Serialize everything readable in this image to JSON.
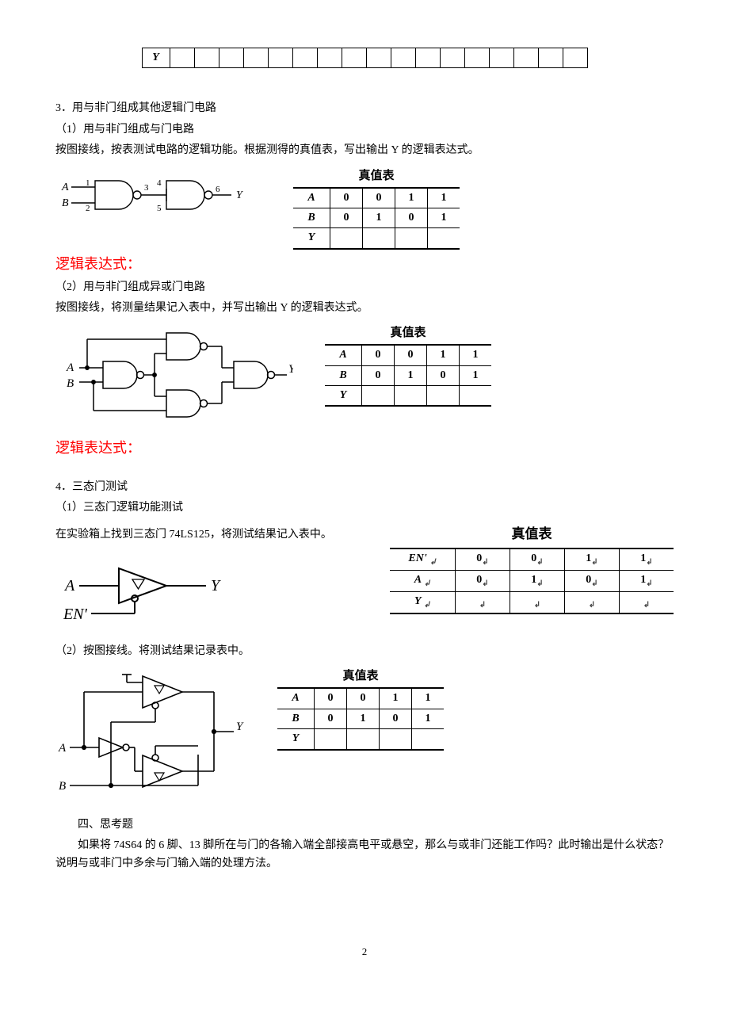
{
  "strip": {
    "label": "Y",
    "cols": 17
  },
  "s3": {
    "heading": "3．用与非门组成其他逻辑门电路",
    "p1": "（1）用与非门组成与门电路",
    "p1desc": "按图接线，按表测试电路的逻辑功能。根据测得的真值表，写出输出 Y 的逻辑表达式。",
    "nand_and": {
      "A": "A",
      "B": "B",
      "Y": "Y",
      "n1": "1",
      "n2": "2",
      "n3": "3",
      "n4": "4",
      "n5": "5",
      "n6": "6"
    },
    "truth1": {
      "title": "真值表",
      "rows": [
        [
          "A",
          "0",
          "0",
          "1",
          "1"
        ],
        [
          "B",
          "0",
          "1",
          "0",
          "1"
        ],
        [
          "Y",
          "",
          "",
          "",
          ""
        ]
      ]
    },
    "expr": "逻辑表达式：",
    "p2": "（2）用与非门组成异或门电路",
    "p2desc": "按图接线，将测量结果记入表中，并写出输出 Y 的逻辑表达式。",
    "truth2": {
      "title": "真值表",
      "rows": [
        [
          "A",
          "0",
          "0",
          "1",
          "1"
        ],
        [
          "B",
          "0",
          "1",
          "0",
          "1"
        ],
        [
          "Y",
          "",
          "",
          "",
          ""
        ]
      ]
    }
  },
  "s4": {
    "heading": "4．三态门测试",
    "p1": "（1）三态门逻辑功能测试",
    "p1desc": "在实验箱上找到三态门 74LS125，将测试结果记入表中。",
    "tri": {
      "A": "A",
      "Y": "Y",
      "EN": "EN'"
    },
    "truth3": {
      "title": "真值表",
      "rows": [
        [
          "EN' ",
          "0",
          "0",
          "1",
          "1"
        ],
        [
          "A",
          "0",
          "1",
          "0",
          "1"
        ],
        [
          "Y",
          "",
          "",
          "",
          ""
        ]
      ]
    },
    "p2": "（2）按图接线。将测试结果记录表中。",
    "truth4": {
      "title": "真值表",
      "rows": [
        [
          "A",
          "0",
          "0",
          "1",
          "1"
        ],
        [
          "B",
          "0",
          "1",
          "0",
          "1"
        ],
        [
          "Y",
          "",
          "",
          "",
          ""
        ]
      ]
    },
    "tri2": {
      "A": "A",
      "B": "B",
      "Y": "Y"
    }
  },
  "q": {
    "heading": "四、思考题",
    "body": "如果将 74S64 的 6 脚、13 脚所在与门的各输入端全部接高电平或悬空，那么与或非门还能工作吗？此时输出是什么状态？说明与或非门中多余与门输入端的处理方法。"
  },
  "page": "2"
}
